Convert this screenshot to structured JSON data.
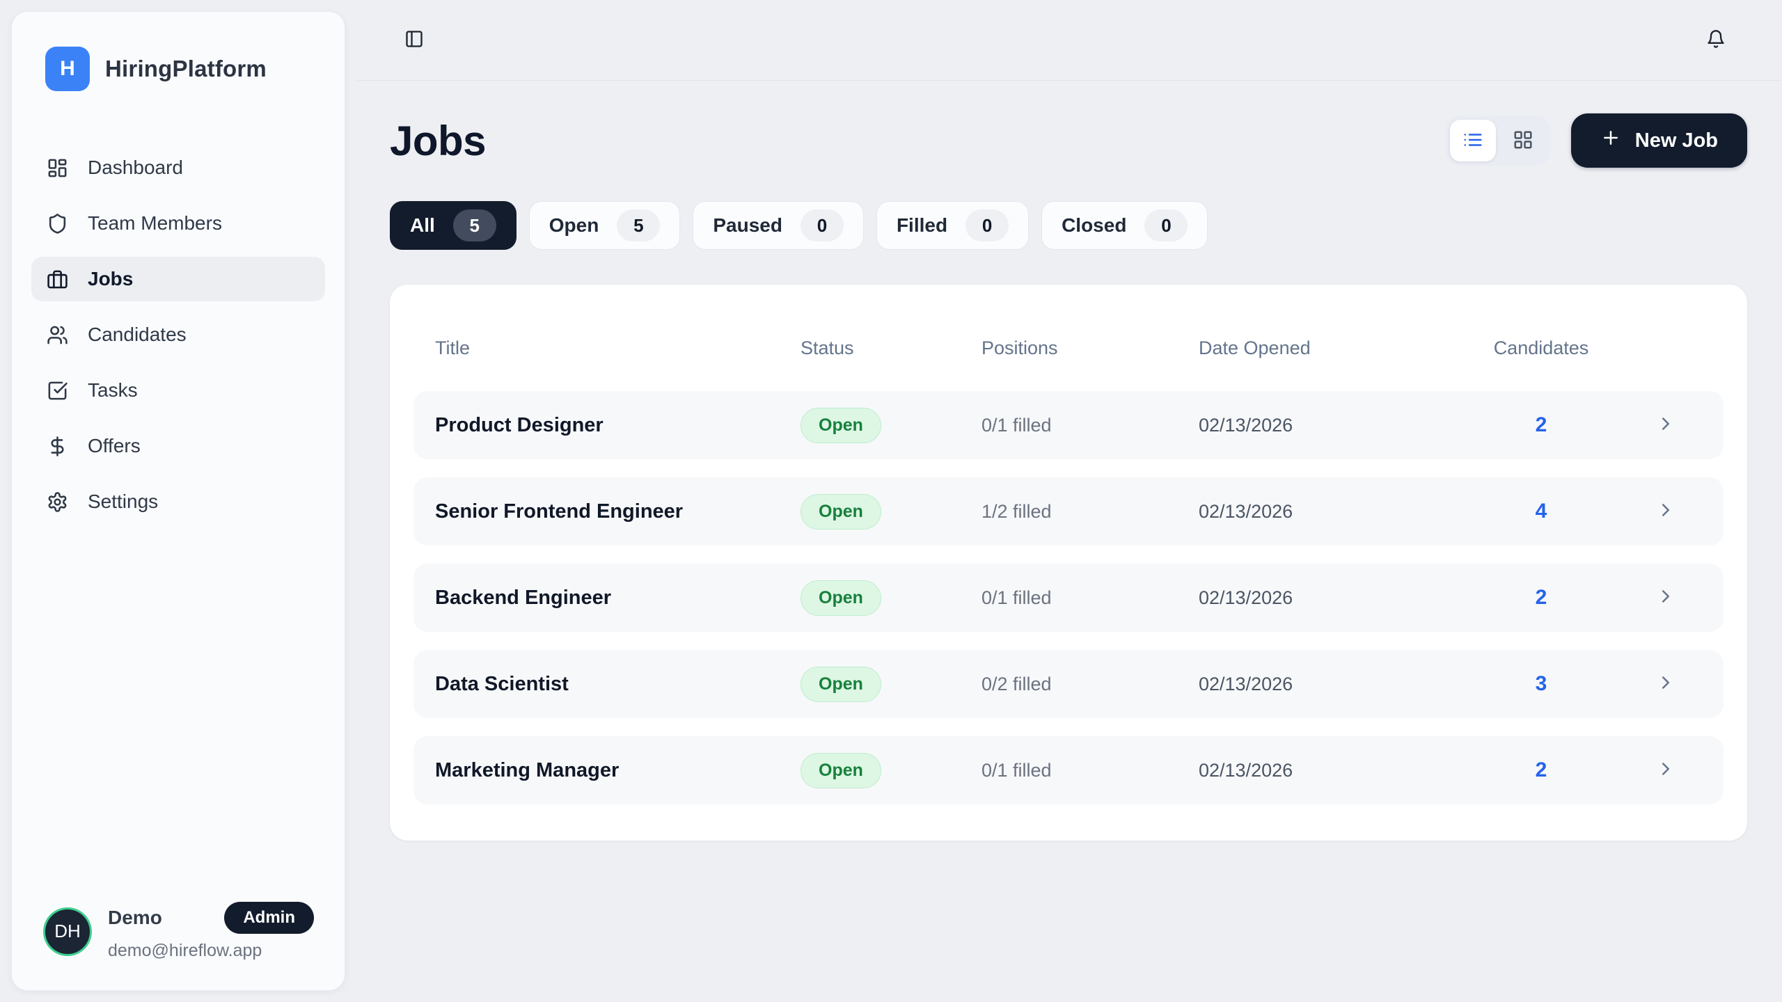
{
  "brand": {
    "name": "HiringPlatform",
    "logo_letter": "H"
  },
  "sidebar": {
    "nav": [
      {
        "label": "Dashboard",
        "icon": "dashboard",
        "active": false
      },
      {
        "label": "Team Members",
        "icon": "shield",
        "active": false
      },
      {
        "label": "Jobs",
        "icon": "briefcase",
        "active": true
      },
      {
        "label": "Candidates",
        "icon": "users",
        "active": false
      },
      {
        "label": "Tasks",
        "icon": "square-check",
        "active": false
      },
      {
        "label": "Offers",
        "icon": "dollar",
        "active": false
      },
      {
        "label": "Settings",
        "icon": "gear",
        "active": false
      }
    ],
    "user": {
      "initials": "DH",
      "name": "Demo",
      "role_badge": "Admin",
      "email": "demo@hireflow.app"
    }
  },
  "topbar": {
    "icons": [
      "panel-left-toggle",
      "notifications-bell"
    ]
  },
  "page": {
    "title": "Jobs",
    "new_job_label": "New Job",
    "view_modes": [
      "list",
      "grid"
    ],
    "active_view_mode": "list",
    "filters": [
      {
        "label": "All",
        "count": "5",
        "active": true
      },
      {
        "label": "Open",
        "count": "5",
        "active": false
      },
      {
        "label": "Paused",
        "count": "0",
        "active": false
      },
      {
        "label": "Filled",
        "count": "0",
        "active": false
      },
      {
        "label": "Closed",
        "count": "0",
        "active": false
      }
    ],
    "table": {
      "columns": [
        "Title",
        "Status",
        "Positions",
        "Date Opened",
        "Candidates"
      ],
      "rows": [
        {
          "title": "Product Designer",
          "status": "Open",
          "positions": "0/1 filled",
          "date_opened": "02/13/2026",
          "candidates": "2"
        },
        {
          "title": "Senior Frontend Engineer",
          "status": "Open",
          "positions": "1/2 filled",
          "date_opened": "02/13/2026",
          "candidates": "4"
        },
        {
          "title": "Backend Engineer",
          "status": "Open",
          "positions": "0/1 filled",
          "date_opened": "02/13/2026",
          "candidates": "2"
        },
        {
          "title": "Data Scientist",
          "status": "Open",
          "positions": "0/2 filled",
          "date_opened": "02/13/2026",
          "candidates": "3"
        },
        {
          "title": "Marketing Manager",
          "status": "Open",
          "positions": "0/1 filled",
          "date_opened": "02/13/2026",
          "candidates": "2"
        }
      ]
    }
  },
  "colors": {
    "app_background": "#edeff3",
    "sidebar_background": "#fafbfd",
    "brand_blue": "#3b82f6",
    "dark_navy": "#131c2c",
    "link_blue": "#2563eb",
    "status_open_bg": "#ddf7e4",
    "status_open_text": "#17813d",
    "avatar_ring_green": "#3ecf8e"
  }
}
